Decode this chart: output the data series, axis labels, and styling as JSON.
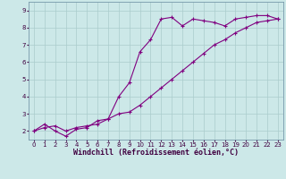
{
  "xlabel": "Windchill (Refroidissement éolien,°C)",
  "background_color": "#cce8e8",
  "grid_color": "#aacccc",
  "line_color": "#800080",
  "spine_color": "#7799aa",
  "xlim": [
    -0.5,
    23.5
  ],
  "ylim": [
    1.5,
    9.5
  ],
  "xticks": [
    0,
    1,
    2,
    3,
    4,
    5,
    6,
    7,
    8,
    9,
    10,
    11,
    12,
    13,
    14,
    15,
    16,
    17,
    18,
    19,
    20,
    21,
    22,
    23
  ],
  "yticks": [
    2,
    3,
    4,
    5,
    6,
    7,
    8,
    9
  ],
  "series1_x": [
    0,
    1,
    2,
    3,
    4,
    5,
    6,
    7,
    8,
    9,
    10,
    11,
    12,
    13,
    14,
    15,
    16,
    17,
    18,
    19,
    20,
    21,
    22,
    23
  ],
  "series1_y": [
    2.0,
    2.4,
    2.0,
    1.7,
    2.1,
    2.2,
    2.6,
    2.7,
    4.0,
    4.8,
    6.6,
    7.3,
    8.5,
    8.6,
    8.1,
    8.5,
    8.4,
    8.3,
    8.1,
    8.5,
    8.6,
    8.7,
    8.7,
    8.5
  ],
  "series2_x": [
    0,
    1,
    2,
    3,
    4,
    5,
    6,
    7,
    8,
    9,
    10,
    11,
    12,
    13,
    14,
    15,
    16,
    17,
    18,
    19,
    20,
    21,
    22,
    23
  ],
  "series2_y": [
    2.0,
    2.2,
    2.3,
    2.0,
    2.2,
    2.3,
    2.4,
    2.7,
    3.0,
    3.1,
    3.5,
    4.0,
    4.5,
    5.0,
    5.5,
    6.0,
    6.5,
    7.0,
    7.3,
    7.7,
    8.0,
    8.3,
    8.4,
    8.5
  ],
  "marker": "+",
  "markersize": 3,
  "linewidth": 0.8,
  "xlabel_fontsize": 6,
  "tick_fontsize": 5,
  "label_color": "#400040"
}
